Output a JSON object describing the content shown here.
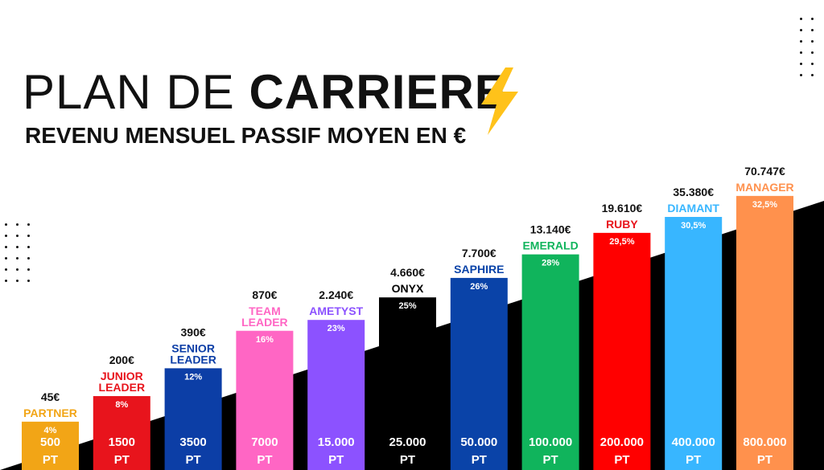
{
  "header": {
    "title_light": "PLAN DE",
    "title_bold": "CARRIERE",
    "subtitle_bold": "REVENU MENSUEL",
    "subtitle_rest": "PASSIF  MOYEN EN €",
    "bolt_icon": "lightning-bolt-icon"
  },
  "chart_data": {
    "type": "bar",
    "categories": [
      "PARTNER",
      "JUNIOR LEADER",
      "SENIOR LEADER",
      "TEAM LEADER",
      "AMETYST",
      "ONYX",
      "SAPHIRE",
      "EMERALD",
      "RUBY",
      "DIAMANT",
      "MANAGER"
    ],
    "rank_lines": [
      [
        "PARTNER"
      ],
      [
        "JUNIOR",
        "LEADER"
      ],
      [
        "SENIOR",
        "LEADER"
      ],
      [
        "TEAM",
        "LEADER"
      ],
      [
        "AMETYST"
      ],
      [
        "ONYX"
      ],
      [
        "SAPHIRE"
      ],
      [
        "EMERALD"
      ],
      [
        "RUBY"
      ],
      [
        "DIAMANT"
      ],
      [
        "MANAGER"
      ]
    ],
    "income_labels": [
      "45€",
      "200€",
      "390€",
      "870€",
      "2.240€",
      "4.660€",
      "7.700€",
      "13.140€",
      "19.610€",
      "35.380€",
      "70.747€"
    ],
    "percent_labels": [
      "4%",
      "8%",
      "12%",
      "16%",
      "23%",
      "25%",
      "26%",
      "28%",
      "29,5%",
      "30,5%",
      "32,5%"
    ],
    "points_labels": [
      [
        "500",
        "PT"
      ],
      [
        "1500",
        "PT"
      ],
      [
        "3500",
        "PT"
      ],
      [
        "7000",
        "PT"
      ],
      [
        "15.000",
        "PT"
      ],
      [
        "25.000",
        "PT"
      ],
      [
        "50.000",
        "PT"
      ],
      [
        "100.000",
        "PT"
      ],
      [
        "200.000",
        "PT"
      ],
      [
        "400.000",
        "PT"
      ],
      [
        "800.000",
        "PT"
      ]
    ],
    "bar_colors": [
      "#f2a516",
      "#e8141c",
      "#0c3ea6",
      "#ff66c4",
      "#8c52ff",
      "#000000",
      "#0a43a8",
      "#10b45c",
      "#ff0000",
      "#38b6ff",
      "#ff914d"
    ],
    "rank_colors": [
      "#f2a516",
      "#e8141c",
      "#0c3ea6",
      "#ff66c4",
      "#8c52ff",
      "#000000",
      "#0a43a8",
      "#10b45c",
      "#e8141c",
      "#38b6ff",
      "#ff914d"
    ],
    "relative_heights": [
      0.191,
      0.292,
      0.402,
      0.55,
      0.593,
      0.682,
      0.759,
      0.852,
      0.937,
      1.0,
      1.083
    ]
  }
}
